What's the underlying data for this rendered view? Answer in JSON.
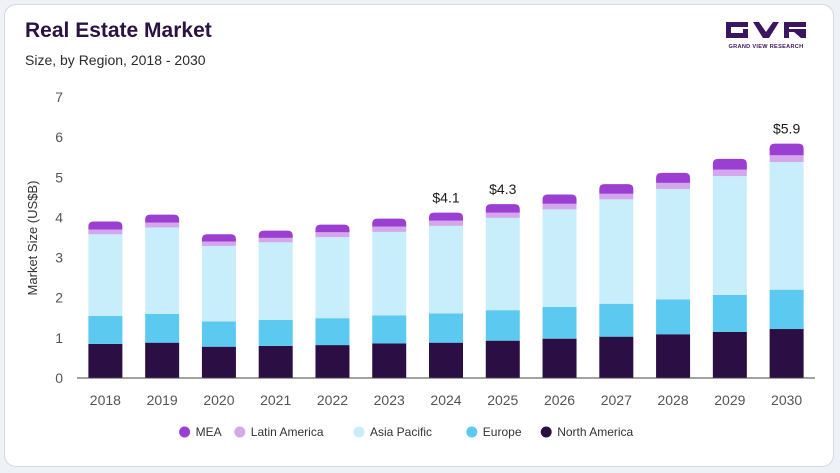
{
  "header": {
    "title": "Real Estate Market",
    "subtitle": "Size, by Region, 2018 - 2030",
    "brand": "GRAND VIEW RESEARCH"
  },
  "colors": {
    "North America": "#2b0f44",
    "Europe": "#5ccaf0",
    "Asia Pacific": "#c8eefb",
    "Latin America": "#d4a6ec",
    "MEA": "#9b3fd2"
  },
  "chart_data": {
    "type": "bar",
    "stacked": true,
    "categories": [
      "2018",
      "2019",
      "2020",
      "2021",
      "2022",
      "2023",
      "2024",
      "2025",
      "2026",
      "2027",
      "2028",
      "2029",
      "2030"
    ],
    "series": [
      {
        "name": "North America",
        "values": [
          0.85,
          0.88,
          0.78,
          0.8,
          0.82,
          0.86,
          0.88,
          0.93,
          0.98,
          1.03,
          1.09,
          1.15,
          1.22
        ]
      },
      {
        "name": "Europe",
        "values": [
          0.7,
          0.72,
          0.63,
          0.65,
          0.67,
          0.7,
          0.73,
          0.76,
          0.79,
          0.82,
          0.87,
          0.92,
          0.98
        ]
      },
      {
        "name": "Asia Pacific",
        "values": [
          2.03,
          2.15,
          1.88,
          1.93,
          2.02,
          2.08,
          2.18,
          2.3,
          2.43,
          2.6,
          2.75,
          2.96,
          3.18
        ]
      },
      {
        "name": "Latin America",
        "values": [
          0.12,
          0.12,
          0.11,
          0.11,
          0.12,
          0.13,
          0.13,
          0.13,
          0.14,
          0.14,
          0.15,
          0.16,
          0.17
        ]
      },
      {
        "name": "MEA",
        "values": [
          0.2,
          0.2,
          0.18,
          0.18,
          0.19,
          0.2,
          0.2,
          0.21,
          0.23,
          0.24,
          0.25,
          0.27,
          0.29
        ]
      }
    ],
    "legend_order": [
      "MEA",
      "Latin America",
      "Asia Pacific",
      "Europe",
      "North America"
    ],
    "legend_position": "bottom",
    "ylabel": "Market Size (US$B)",
    "xlabel": "",
    "ylim": [
      0,
      7
    ],
    "yticks": [
      "0",
      "1",
      "2",
      "3",
      "4",
      "5",
      "6",
      "7"
    ],
    "annotations": [
      {
        "category": "2024",
        "text": "$4.1"
      },
      {
        "category": "2025",
        "text": "$4.3"
      },
      {
        "category": "2030",
        "text": "$5.9"
      }
    ],
    "grid": false
  }
}
